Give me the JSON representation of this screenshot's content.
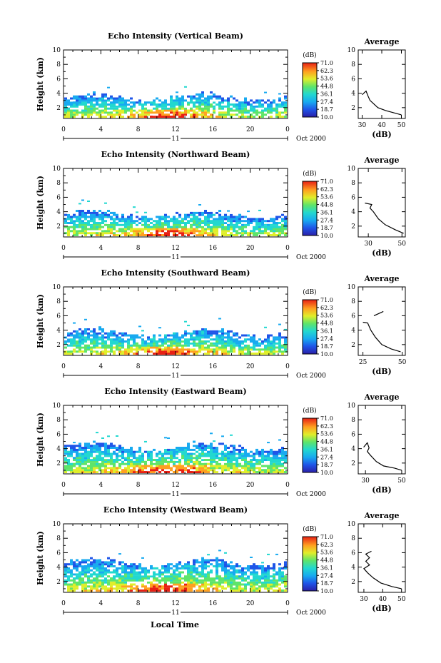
{
  "figure": {
    "xlabel": "Local Time"
  },
  "chart_data": [
    {
      "type": "heatmap",
      "title": "Echo Intensity (Vertical Beam)",
      "ylabel": "Height (km)",
      "x_ticks": [
        "0",
        "4",
        "8",
        "12",
        "16",
        "20",
        "0"
      ],
      "y_ticks": [
        "2",
        "4",
        "6",
        "8",
        "10"
      ],
      "xlim": [
        0,
        24
      ],
      "ylim": [
        0.5,
        10
      ],
      "date_day": "11",
      "date_label": "Oct 2000",
      "echo_top_km": 3.3,
      "colorbar": {
        "unit": "(dB)",
        "ticks": [
          "71.0",
          "62.3",
          "53.6",
          "44.8",
          "36.1",
          "27.4",
          "18.7",
          "10.0"
        ]
      },
      "profile": {
        "title": "Average",
        "xlabel": "(dB)",
        "x_ticks": [
          "30",
          "40",
          "50"
        ],
        "xlim": [
          28,
          52
        ],
        "y_ticks": [
          "2",
          "4",
          "6",
          "8",
          "10"
        ],
        "ylim": [
          0.5,
          10
        ],
        "segments": [
          [
            [
              30,
              3.8
            ],
            [
              32,
              4.3
            ],
            [
              33,
              3.6
            ],
            [
              34,
              3.0
            ],
            [
              38,
              2.0
            ],
            [
              42,
              1.6
            ],
            [
              46,
              1.3
            ],
            [
              50,
              1.0
            ]
          ]
        ]
      }
    },
    {
      "type": "heatmap",
      "title": "Echo Intensity (Northward Beam)",
      "ylabel": "Height (km)",
      "x_ticks": [
        "0",
        "4",
        "8",
        "12",
        "16",
        "20",
        "0"
      ],
      "y_ticks": [
        "2",
        "4",
        "6",
        "8",
        "10"
      ],
      "xlim": [
        0,
        24
      ],
      "ylim": [
        0.5,
        10
      ],
      "date_day": "11",
      "date_label": "Oct 2000",
      "echo_top_km": 3.5,
      "colorbar": {
        "unit": "(dB)",
        "ticks": [
          "71.0",
          "62.3",
          "53.6",
          "44.8",
          "36.1",
          "27.4",
          "18.7",
          "10.0"
        ]
      },
      "profile": {
        "title": "Average",
        "xlabel": "(dB)",
        "x_ticks": [
          "30",
          "50"
        ],
        "xlim": [
          24,
          52
        ],
        "y_ticks": [
          "2",
          "4",
          "6",
          "8",
          "10"
        ],
        "ylim": [
          0.5,
          10
        ],
        "segments": [
          [
            [
              28,
              5.2
            ],
            [
              32,
              5.0
            ],
            [
              31,
              4.5
            ],
            [
              33,
              4.0
            ],
            [
              36,
              3.0
            ],
            [
              40,
              2.2
            ],
            [
              46,
              1.5
            ],
            [
              51,
              1.0
            ]
          ]
        ]
      }
    },
    {
      "type": "heatmap",
      "title": "Echo Intensity (Southward Beam)",
      "ylabel": "Height (km)",
      "x_ticks": [
        "0",
        "4",
        "8",
        "12",
        "16",
        "20",
        "0"
      ],
      "y_ticks": [
        "2",
        "4",
        "6",
        "8",
        "10"
      ],
      "xlim": [
        0,
        24
      ],
      "ylim": [
        0.5,
        10
      ],
      "date_day": "11",
      "date_label": "Oct 2000",
      "echo_top_km": 3.5,
      "colorbar": {
        "unit": "(dB)",
        "ticks": [
          "71.0",
          "62.3",
          "53.6",
          "44.8",
          "36.1",
          "27.4",
          "18.7",
          "10.0"
        ]
      },
      "profile": {
        "title": "Average",
        "xlabel": "(dB)",
        "x_ticks": [
          "25",
          "50"
        ],
        "xlim": [
          22,
          52
        ],
        "y_ticks": [
          "2",
          "4",
          "6",
          "8",
          "10"
        ],
        "ylim": [
          0.5,
          10
        ],
        "segments": [
          [
            [
              32,
              6.0
            ],
            [
              35,
              6.3
            ],
            [
              38,
              6.6
            ]
          ],
          [
            [
              25,
              5.1
            ],
            [
              28,
              5.0
            ],
            [
              30,
              4.0
            ],
            [
              33,
              3.0
            ],
            [
              37,
              2.0
            ],
            [
              43,
              1.4
            ],
            [
              49,
              1.0
            ]
          ]
        ]
      }
    },
    {
      "type": "heatmap",
      "title": "Echo Intensity (Eastward Beam)",
      "ylabel": "Height (km)",
      "x_ticks": [
        "0",
        "4",
        "8",
        "12",
        "16",
        "20",
        "0"
      ],
      "y_ticks": [
        "2",
        "4",
        "6",
        "8",
        "10"
      ],
      "xlim": [
        0,
        24
      ],
      "ylim": [
        0.5,
        10
      ],
      "date_day": "11",
      "date_label": "Oct 2000",
      "echo_top_km": 4.2,
      "colorbar": {
        "unit": "(dB)",
        "ticks": [
          "71.0",
          "62.3",
          "53.6",
          "44.8",
          "36.1",
          "27.4",
          "18.7",
          "10.0"
        ]
      },
      "profile": {
        "title": "Average",
        "xlabel": "(dB)",
        "x_ticks": [
          "30",
          "50"
        ],
        "xlim": [
          26,
          52
        ],
        "y_ticks": [
          "2",
          "4",
          "6",
          "8",
          "10"
        ],
        "ylim": [
          0.5,
          10
        ],
        "segments": [
          [
            [
              29,
              4.2
            ],
            [
              31,
              4.8
            ],
            [
              32,
              4.1
            ],
            [
              31,
              3.6
            ],
            [
              33,
              3.0
            ],
            [
              36,
              2.2
            ],
            [
              40,
              1.6
            ],
            [
              46,
              1.3
            ],
            [
              50,
              1.0
            ]
          ]
        ]
      }
    },
    {
      "type": "heatmap",
      "title": "Echo Intensity (Westward Beam)",
      "ylabel": "Height (km)",
      "x_ticks": [
        "0",
        "4",
        "8",
        "12",
        "16",
        "20",
        "0"
      ],
      "y_ticks": [
        "2",
        "4",
        "6",
        "8",
        "10"
      ],
      "xlim": [
        0,
        24
      ],
      "ylim": [
        0.5,
        10
      ],
      "date_day": "11",
      "date_label": "Oct 2000",
      "echo_top_km": 4.5,
      "colorbar": {
        "unit": "(dB)",
        "ticks": [
          "71.0",
          "62.3",
          "53.6",
          "44.8",
          "36.1",
          "27.4",
          "18.7",
          "10.0"
        ]
      },
      "profile": {
        "title": "Average",
        "xlabel": "(dB)",
        "x_ticks": [
          "30",
          "40",
          "50"
        ],
        "xlim": [
          27,
          52
        ],
        "y_ticks": [
          "2",
          "4",
          "6",
          "8",
          "10"
        ],
        "ylim": [
          0.5,
          10
        ],
        "segments": [
          [
            [
              34,
              6.2
            ],
            [
              31,
              5.8
            ],
            [
              33,
              5.3
            ],
            [
              31,
              4.8
            ],
            [
              33,
              4.3
            ],
            [
              30,
              3.8
            ],
            [
              32,
              3.2
            ],
            [
              35,
              2.5
            ],
            [
              39,
              1.8
            ],
            [
              45,
              1.3
            ],
            [
              50,
              1.0
            ]
          ]
        ]
      }
    }
  ]
}
